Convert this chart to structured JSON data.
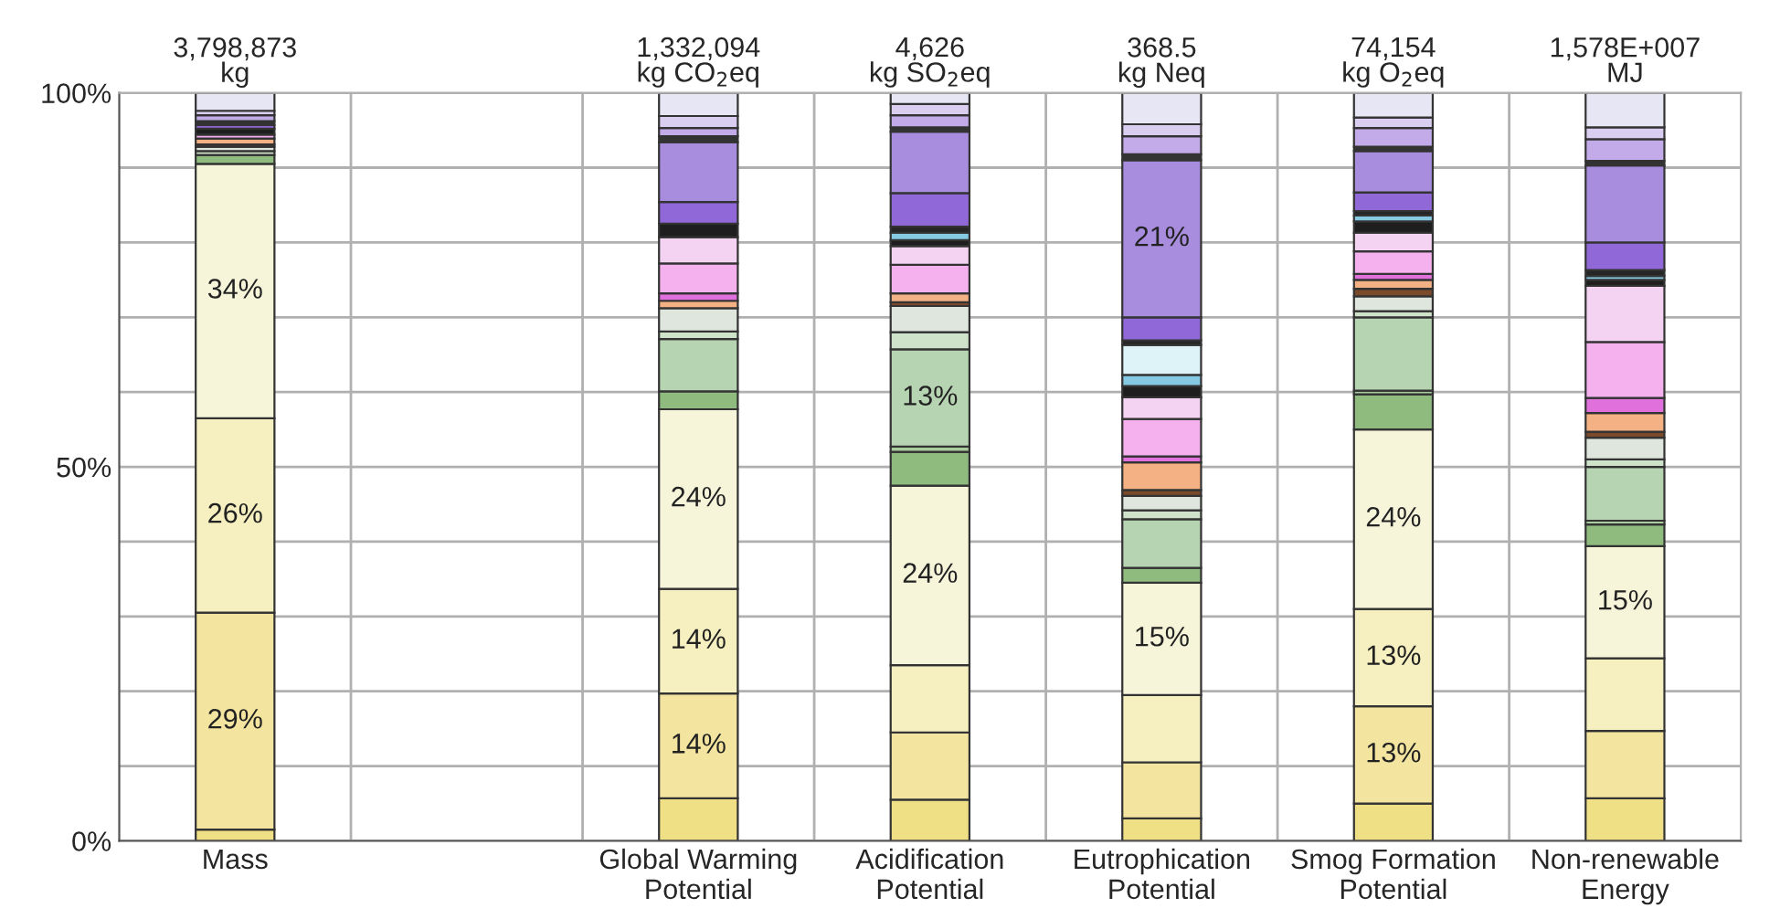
{
  "chart_data": {
    "type": "bar",
    "stacked": true,
    "categories": [
      "Mass",
      null,
      "Global Warming\nPotential",
      "Acidification\nPotential",
      "Eutrophication\nPotential",
      "Smog Formation\nPotential",
      "Non-renewable\nEnergy"
    ],
    "annotations": [
      {
        "text": "3,798,873\nkg",
        "x": "Mass",
        "y": 100
      },
      {
        "text": "1,332,094\nkg CO$_{2}$eq",
        "x": "Global Warming\nPotential",
        "y": 100
      },
      {
        "text": "4,626\nkg SO$_{2}$eq",
        "x": "Acidification\nPotential",
        "y": 100
      },
      {
        "text": "368.5\nkg Neq",
        "x": "Eutrophication\nPotential",
        "y": 100
      },
      {
        "text": "74,154\nkg O$_{2}$eq",
        "x": "Smog Formation\nPotential",
        "y": 100
      },
      {
        "text": "1,578E+007\nMJ",
        "x": "Non-renewable\nEnergy",
        "y": 100
      }
    ],
    "ylim": [
      0,
      100
    ],
    "yticks": [
      {
        "value": 0,
        "label": "0%"
      },
      {
        "value": 10,
        "label": null
      },
      {
        "value": 20,
        "label": null
      },
      {
        "value": 30,
        "label": null
      },
      {
        "value": 40,
        "label": null
      },
      {
        "value": 50,
        "label": "50%"
      },
      {
        "value": 60,
        "label": null
      },
      {
        "value": 70,
        "label": null
      },
      {
        "value": 80,
        "label": null
      },
      {
        "value": 90,
        "label": null
      },
      {
        "value": 100,
        "label": "100%"
      }
    ],
    "grid": true,
    "legend": false,
    "series": [
      {
        "color": "#efdf85",
        "values": [
          1.5,
          null,
          5.7,
          5.5,
          3,
          5,
          5.7
        ]
      },
      {
        "color": "#f3e59f",
        "values": [
          29,
          null,
          14,
          9,
          7.5,
          13,
          9
        ],
        "value_labels": [
          "29%",
          null,
          "14%",
          null,
          null,
          "13%",
          null
        ]
      },
      {
        "color": "#f6efbf",
        "values": [
          26,
          null,
          14,
          9,
          9,
          13,
          9.7
        ],
        "value_labels": [
          "26%",
          null,
          "14%",
          null,
          null,
          "13%",
          null
        ]
      },
      {
        "color": "#f6f5da",
        "values": [
          34,
          null,
          24,
          24,
          15,
          24,
          15
        ],
        "value_labels": [
          "34%",
          null,
          "24%",
          "24%",
          "15%",
          "24%",
          "15%"
        ]
      },
      {
        "color": "#8fbb7f",
        "values": [
          1.2,
          null,
          2.4,
          4.5,
          2,
          4.7,
          2.9
        ]
      },
      {
        "color": "#a9cc9f",
        "values": [
          null,
          null,
          null,
          0.7,
          null,
          0.5,
          0.5
        ]
      },
      {
        "color": "#b7d4b2",
        "values": [
          null,
          null,
          7,
          13,
          6.5,
          9.8,
          7.2
        ],
        "value_labels": [
          null,
          null,
          null,
          "13%",
          null,
          null,
          null
        ]
      },
      {
        "color": "#cfe3cb",
        "values": [
          0.5,
          null,
          1,
          2.3,
          1.2,
          0.8,
          1
        ]
      },
      {
        "color": "#dfe6dd",
        "values": [
          0.6,
          null,
          3.1,
          3.5,
          1.9,
          2,
          2.9
        ]
      },
      {
        "color": "#7a4a2a",
        "values": [
          0.3,
          null,
          null,
          0.5,
          0.8,
          1,
          0.8
        ]
      },
      {
        "color": "#f4b183",
        "values": [
          0.8,
          null,
          1,
          1.2,
          3.7,
          1.2,
          2.5
        ]
      },
      {
        "color": "#e070dc",
        "values": [
          null,
          null,
          1,
          null,
          0.8,
          0.8,
          2
        ]
      },
      {
        "color": "#f4b1ee",
        "values": [
          0.5,
          null,
          4,
          3.8,
          5,
          3,
          7.5
        ]
      },
      {
        "color": "#f4d2f2",
        "values": [
          null,
          null,
          3.5,
          2.5,
          2.9,
          2.5,
          7.5
        ]
      },
      {
        "color": "#1e1e1e",
        "values": [
          0.8,
          null,
          1.8,
          0.8,
          1.5,
          1.5,
          0.8
        ]
      },
      {
        "color": "#86c9e3",
        "values": [
          null,
          null,
          null,
          1,
          1.5,
          0.8,
          0.5
        ]
      },
      {
        "color": "#ddf3f8",
        "values": [
          null,
          null,
          null,
          null,
          4,
          null,
          null
        ]
      },
      {
        "color": "#262626",
        "values": [
          null,
          null,
          null,
          0.8,
          0.6,
          0.6,
          0.8
        ]
      },
      {
        "color": "#9068d8",
        "values": [
          0.5,
          null,
          2.9,
          4.5,
          3.1,
          2.5,
          3.7
        ]
      },
      {
        "color": "#a88ddf",
        "values": [
          null,
          null,
          8,
          8.2,
          21,
          5.5,
          10.3
        ],
        "value_labels": [
          null,
          null,
          null,
          null,
          "21%",
          null,
          null
        ]
      },
      {
        "color": "#333333",
        "values": [
          0.5,
          null,
          0.8,
          0.6,
          0.8,
          0.6,
          0.6
        ]
      },
      {
        "color": "#c3aae8",
        "values": [
          0.8,
          null,
          1.1,
          1.6,
          2.4,
          2.5,
          2.9
        ]
      },
      {
        "color": "#d9cdf0",
        "values": [
          0.6,
          null,
          1.6,
          1.5,
          1.6,
          1.4,
          1.6
        ]
      },
      {
        "color": "#e6e6f5",
        "values": [
          2.4,
          null,
          3.1,
          1.5,
          4.2,
          3.3,
          4.6
        ]
      }
    ]
  }
}
